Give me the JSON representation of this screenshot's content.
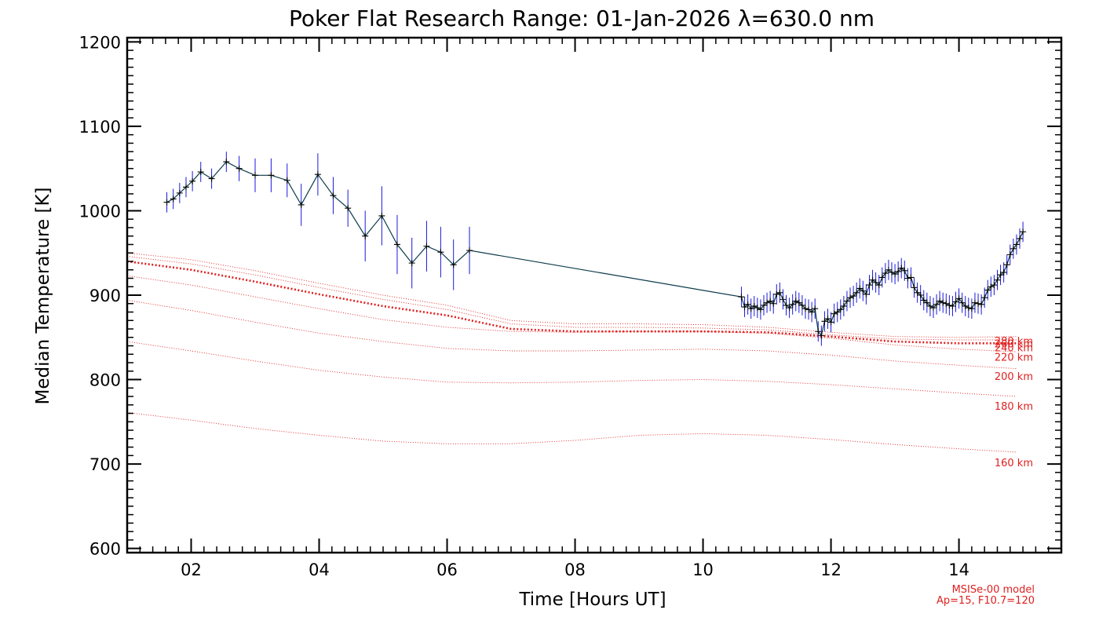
{
  "chart_data": {
    "type": "line",
    "title": "Poker Flat Research Range: 01-Jan-2026 λ=630.0 nm",
    "xlabel": "Time [Hours UT]",
    "ylabel": "Median Temperature [K]",
    "xlim": [
      1.0,
      15.6
    ],
    "ylim": [
      595,
      1205
    ],
    "xticks": [
      2,
      4,
      6,
      8,
      10,
      12,
      14
    ],
    "xtick_labels": [
      "02",
      "04",
      "06",
      "08",
      "10",
      "12",
      "14"
    ],
    "yticks": [
      600,
      700,
      800,
      900,
      1000,
      1100,
      1200
    ],
    "ytick_labels": [
      "600",
      "700",
      "800",
      "900",
      "1000",
      "1100",
      "1200"
    ],
    "grid": false,
    "colors": {
      "data_line": "#0a3a4a",
      "error_bars": "#1a1adc",
      "markers": "#000000",
      "model": "#e02020"
    },
    "measurement_series": {
      "x": [
        1.62,
        1.72,
        1.82,
        1.92,
        2.02,
        2.15,
        2.32,
        2.55,
        2.75,
        3.0,
        3.25,
        3.5,
        3.72,
        3.98,
        4.22,
        4.45,
        4.72,
        4.98,
        5.22,
        5.45,
        5.68,
        5.9,
        6.1,
        6.35,
        10.6,
        10.65,
        10.7,
        10.75,
        10.8,
        10.85,
        10.9,
        10.95,
        11.0,
        11.05,
        11.1,
        11.15,
        11.2,
        11.25,
        11.3,
        11.35,
        11.4,
        11.45,
        11.5,
        11.55,
        11.6,
        11.65,
        11.7,
        11.75,
        11.8,
        11.85,
        11.9,
        11.95,
        12.0,
        12.05,
        12.1,
        12.15,
        12.2,
        12.25,
        12.3,
        12.35,
        12.4,
        12.45,
        12.5,
        12.55,
        12.6,
        12.65,
        12.7,
        12.75,
        12.8,
        12.85,
        12.9,
        12.95,
        13.0,
        13.05,
        13.1,
        13.15,
        13.2,
        13.25,
        13.3,
        13.35,
        13.4,
        13.45,
        13.5,
        13.55,
        13.6,
        13.65,
        13.7,
        13.75,
        13.8,
        13.85,
        13.9,
        13.95,
        14.0,
        14.05,
        14.1,
        14.15,
        14.2,
        14.25,
        14.3,
        14.35,
        14.4,
        14.45,
        14.5,
        14.55,
        14.6,
        14.65,
        14.7,
        14.75,
        14.8,
        14.85,
        14.9,
        14.95,
        15.0
      ],
      "y": [
        1010,
        1014,
        1021,
        1028,
        1035,
        1046,
        1038,
        1058,
        1050,
        1042,
        1042,
        1036,
        1007,
        1043,
        1018,
        1003,
        970,
        994,
        960,
        938,
        958,
        951,
        936,
        953,
        898,
        886,
        889,
        884,
        887,
        885,
        883,
        888,
        891,
        893,
        890,
        901,
        903,
        895,
        888,
        885,
        889,
        893,
        891,
        888,
        884,
        883,
        880,
        884,
        857,
        852,
        869,
        872,
        868,
        878,
        880,
        883,
        887,
        893,
        897,
        899,
        903,
        908,
        905,
        901,
        912,
        918,
        915,
        912,
        921,
        926,
        930,
        927,
        925,
        928,
        932,
        929,
        920,
        921,
        909,
        903,
        900,
        894,
        891,
        887,
        885,
        889,
        893,
        891,
        890,
        888,
        887,
        892,
        896,
        891,
        887,
        885,
        884,
        891,
        890,
        889,
        897,
        906,
        910,
        912,
        918,
        924,
        927,
        936,
        948,
        955,
        960,
        967,
        975
      ],
      "err": [
        12,
        12,
        12,
        12,
        12,
        12,
        12,
        12,
        15,
        20,
        20,
        20,
        25,
        25,
        22,
        22,
        30,
        35,
        35,
        30,
        30,
        30,
        30,
        28,
        12,
        12,
        12,
        12,
        12,
        12,
        12,
        12,
        12,
        12,
        12,
        12,
        12,
        12,
        12,
        12,
        12,
        12,
        12,
        12,
        12,
        12,
        12,
        12,
        12,
        12,
        12,
        12,
        12,
        12,
        12,
        12,
        12,
        12,
        12,
        12,
        12,
        12,
        12,
        12,
        12,
        12,
        12,
        12,
        12,
        12,
        12,
        12,
        12,
        12,
        12,
        12,
        12,
        12,
        12,
        12,
        12,
        12,
        12,
        12,
        12,
        12,
        12,
        12,
        12,
        12,
        12,
        12,
        12,
        12,
        12,
        12,
        12,
        12,
        12,
        12,
        12,
        12,
        12,
        12,
        12,
        12,
        12,
        12,
        12,
        12,
        12,
        12,
        12
      ]
    },
    "model_x": [
      1.0,
      2.0,
      3.0,
      4.0,
      5.0,
      6.0,
      7.0,
      8.0,
      9.0,
      10.0,
      11.0,
      12.0,
      13.0,
      14.0,
      14.9
    ],
    "model_series": [
      {
        "name": "160 km",
        "label_y": 702,
        "values": [
          761,
          752,
          742,
          734,
          727,
          724,
          724,
          728,
          734,
          736,
          734,
          729,
          723,
          718,
          714
        ]
      },
      {
        "name": "180 km",
        "label_y": 769,
        "values": [
          845,
          834,
          822,
          811,
          803,
          797,
          796,
          797,
          799,
          800,
          798,
          794,
          789,
          784,
          780
        ]
      },
      {
        "name": "200 km",
        "label_y": 804,
        "values": [
          894,
          882,
          868,
          855,
          845,
          837,
          834,
          834,
          835,
          836,
          834,
          829,
          822,
          817,
          813
        ]
      },
      {
        "name": "220 km",
        "label_y": 827,
        "values": [
          923,
          912,
          898,
          884,
          871,
          862,
          857,
          856,
          857,
          857,
          855,
          849,
          841,
          836,
          833
        ]
      },
      {
        "name": "240 km",
        "label_y": 838,
        "values": [
          940,
          930,
          916,
          901,
          887,
          876,
          860,
          857,
          857,
          857,
          856,
          851,
          845,
          843,
          843
        ]
      },
      {
        "name": "260 km",
        "label_y": 843,
        "values": [
          946,
          937,
          924,
          909,
          895,
          883,
          866,
          862,
          862,
          861,
          859,
          853,
          848,
          847,
          847
        ]
      },
      {
        "name": "280 km",
        "label_y": 846,
        "values": [
          950,
          942,
          929,
          914,
          900,
          888,
          870,
          866,
          866,
          865,
          862,
          856,
          851,
          850,
          851
        ]
      }
    ],
    "footnote": [
      "MSISe-00 model",
      "Ap=15, F10.7=120"
    ]
  }
}
